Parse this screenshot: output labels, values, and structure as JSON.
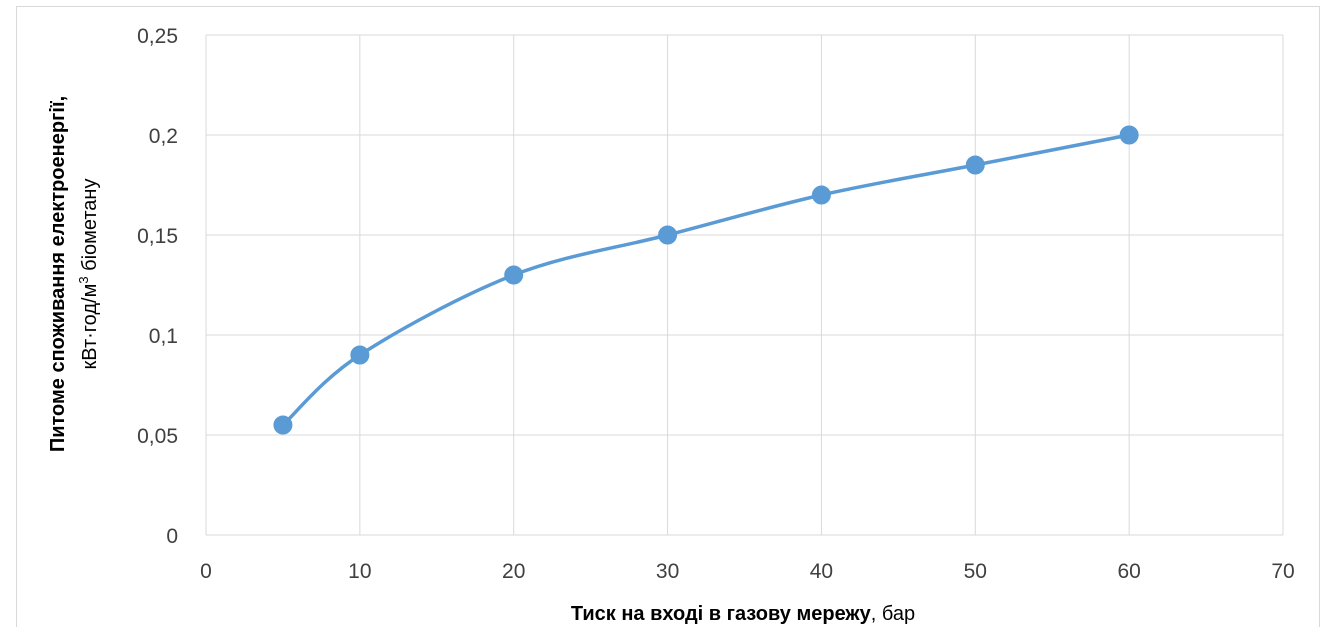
{
  "chart_data": {
    "type": "scatter",
    "x": [
      5,
      10,
      20,
      30,
      40,
      50,
      60
    ],
    "y": [
      0.055,
      0.09,
      0.13,
      0.15,
      0.17,
      0.185,
      0.2
    ],
    "xlim": [
      0,
      70
    ],
    "ylim": [
      0,
      0.25
    ],
    "x_ticks": [
      "0",
      "10",
      "20",
      "30",
      "40",
      "50",
      "60",
      "70"
    ],
    "y_ticks": [
      "0",
      "0,05",
      "0,1",
      "0,15",
      "0,2",
      "0,25"
    ],
    "x_tick_values": [
      0,
      10,
      20,
      30,
      40,
      50,
      60,
      70
    ],
    "y_tick_values": [
      0,
      0.05,
      0.1,
      0.15,
      0.2,
      0.25
    ],
    "xlabel_bold": "Тиск на вході в газову мережу",
    "xlabel_rest": ", бар",
    "ylabel_line1": "Питоме споживання електроенергії,",
    "ylabel_line2_pre": "кВт·год/м",
    "ylabel_line2_sup": "3",
    "ylabel_line2_post": " біометану",
    "grid": true,
    "smooth_line": true,
    "series_color": "#5b9bd5",
    "grid_color": "#d9d9d9"
  }
}
